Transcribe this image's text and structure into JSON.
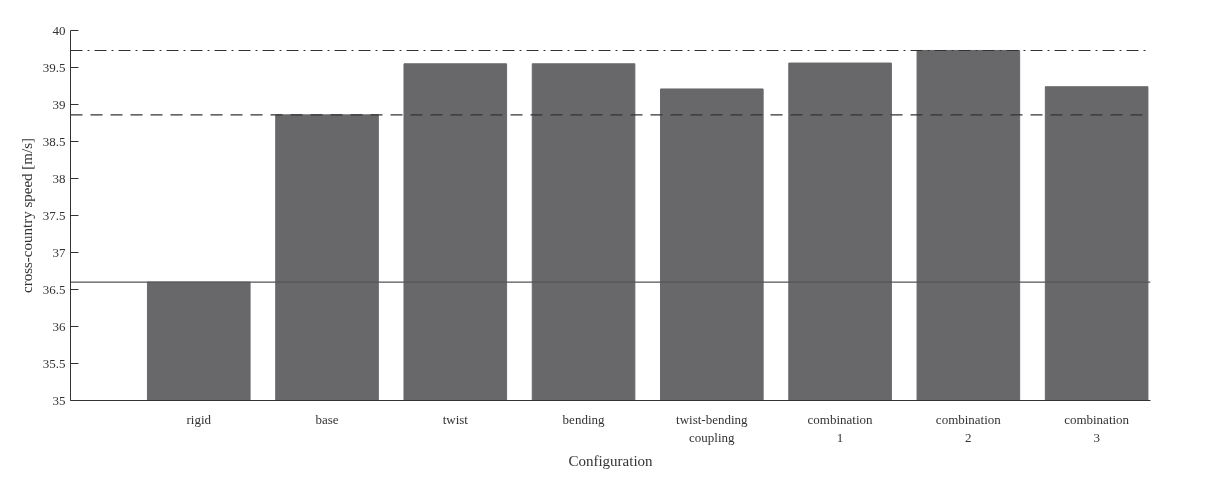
{
  "chart_data": {
    "type": "bar",
    "xlabel": "Configuration",
    "ylabel": "cross-country speed [m/s]",
    "categories": [
      "rigid",
      "base",
      "twist",
      "bending",
      "twist-bending\ncoupling",
      "combination\n1",
      "combination\n2",
      "combination\n3"
    ],
    "values": [
      36.6,
      38.86,
      39.55,
      39.55,
      39.21,
      39.56,
      39.73,
      39.24
    ],
    "color": "#68686a",
    "ylim": [
      35,
      40
    ],
    "yticks": [
      35,
      35.5,
      36,
      36.5,
      37,
      37.5,
      38,
      38.5,
      39,
      39.5,
      40
    ],
    "grid": false,
    "ref_lines": [
      {
        "axis": "y",
        "value": 36.6,
        "color": "#555555",
        "line_style": "solid"
      },
      {
        "axis": "y",
        "value": 38.86,
        "color": "#333333",
        "line_style": "dashed"
      },
      {
        "axis": "y",
        "value": 39.73,
        "color": "#333333",
        "line_style": "dashdot"
      }
    ]
  }
}
